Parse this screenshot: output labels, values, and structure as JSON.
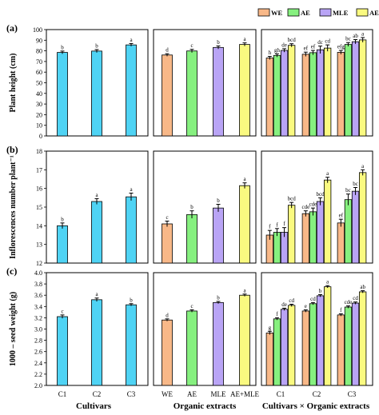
{
  "legend": [
    {
      "label": "WE",
      "color": "#f8b888"
    },
    {
      "label": "AE",
      "color": "#86f07f"
    },
    {
      "label": "MLE",
      "color": "#b9a4f5"
    },
    {
      "label": "AE+MLE",
      "color": "#fafa80"
    }
  ],
  "cultivar_color": "#4fd3f4",
  "group_labels": {
    "cultivars": "Cultivars",
    "extracts": "Organic extracts",
    "interaction": "Cultivars × Organic extracts"
  },
  "chart_data": [
    {
      "type": "bar",
      "row_label": "(a)",
      "ylabel": "Plant height (cm)",
      "ylim": [
        0,
        100
      ],
      "yticks": [
        0,
        10,
        20,
        30,
        40,
        50,
        60,
        70,
        80,
        90,
        100
      ],
      "cultivars": {
        "categories": [
          "C1",
          "C2",
          "C3"
        ],
        "values": [
          78.5,
          79.8,
          85.6
        ],
        "errors": [
          1.3,
          1.4,
          1.3
        ],
        "letters": [
          "b",
          "b",
          "a"
        ]
      },
      "extracts": {
        "categories": [
          "WE",
          "AE",
          "MLE",
          "AE+MLE"
        ],
        "values": [
          76.1,
          79.9,
          83.2,
          86.0
        ],
        "errors": [
          1.2,
          1.5,
          1.4,
          1.5
        ],
        "letters": [
          "d",
          "c",
          "b",
          "a"
        ]
      },
      "interaction": {
        "categories": [
          "C1",
          "C2",
          "C3"
        ],
        "series": [
          {
            "name": "WE",
            "values": [
              73.3,
              76.8,
              78.6
            ],
            "errors": [
              1.5,
              2.0,
              1.8
            ],
            "letters": [
              "h",
              "ef",
              "efg"
            ]
          },
          {
            "name": "AE",
            "values": [
              75.7,
              78.3,
              86.0
            ],
            "errors": [
              1.5,
              2.1,
              1.8
            ],
            "letters": [
              "gh",
              "ef",
              "bc"
            ]
          },
          {
            "name": "MLE",
            "values": [
              80.4,
              81.0,
              88.6
            ],
            "errors": [
              1.6,
              3.5,
              2.0
            ],
            "letters": [
              "de",
              "dc",
              "ab"
            ]
          },
          {
            "name": "AE+MLE",
            "values": [
              85.2,
              82.6,
              90.3
            ],
            "errors": [
              1.5,
              3.0,
              2.2
            ],
            "letters": [
              "bcd",
              "cd",
              "a"
            ]
          }
        ]
      }
    },
    {
      "type": "bar",
      "row_label": "(b)",
      "ylabel": "Inflorescences number plant⁻¹",
      "ylim": [
        12,
        18
      ],
      "yticks": [
        12,
        13,
        14,
        15,
        16,
        17,
        18
      ],
      "cultivars": {
        "categories": [
          "C1",
          "C2",
          "C3"
        ],
        "values": [
          14.0,
          15.3,
          15.55
        ],
        "errors": [
          0.15,
          0.15,
          0.2
        ],
        "letters": [
          "b",
          "a",
          "a"
        ]
      },
      "extracts": {
        "categories": [
          "WE",
          "AE",
          "MLE",
          "AE+MLE"
        ],
        "values": [
          14.1,
          14.6,
          14.95,
          16.15
        ],
        "errors": [
          0.15,
          0.2,
          0.2,
          0.15
        ],
        "letters": [
          "c",
          "b",
          "b",
          "a"
        ]
      },
      "interaction": {
        "categories": [
          "C1",
          "C2",
          "C3"
        ],
        "series": [
          {
            "name": "WE",
            "values": [
              13.5,
              14.65,
              14.15
            ],
            "errors": [
              0.25,
              0.15,
              0.2
            ],
            "letters": [
              "f",
              "cde",
              "ef"
            ]
          },
          {
            "name": "AE",
            "values": [
              13.65,
              14.75,
              15.4
            ],
            "errors": [
              0.2,
              0.2,
              0.3
            ],
            "letters": [
              "f",
              "cde",
              "bc"
            ]
          },
          {
            "name": "MLE",
            "values": [
              13.65,
              15.3,
              15.85
            ],
            "errors": [
              0.25,
              0.2,
              0.2
            ],
            "letters": [
              "f",
              "bcd",
              "bc"
            ]
          },
          {
            "name": "AE+MLE",
            "values": [
              15.1,
              16.45,
              16.85
            ],
            "errors": [
              0.15,
              0.15,
              0.15
            ],
            "letters": [
              "bcd",
              "a",
              "a"
            ]
          }
        ]
      }
    },
    {
      "type": "bar",
      "row_label": "(c)",
      "ylabel": "1000 – seed weight (g)",
      "ylim": [
        2.0,
        4.0
      ],
      "yticks": [
        2.0,
        2.2,
        2.4,
        2.6,
        2.8,
        3.0,
        3.2,
        3.4,
        3.6,
        3.8,
        4.0
      ],
      "ytick_labels": [
        "2.0",
        "2.2",
        "2.4",
        "2.6",
        "2.8",
        "3.0",
        "3.2",
        "3.4",
        "3.6",
        "3.8",
        "4.0"
      ],
      "cultivars": {
        "categories": [
          "C1",
          "C2",
          "C3"
        ],
        "values": [
          3.22,
          3.52,
          3.43
        ],
        "errors": [
          0.03,
          0.03,
          0.02
        ],
        "letters": [
          "c",
          "a",
          "b"
        ]
      },
      "extracts": {
        "categories": [
          "WE",
          "AE",
          "MLE",
          "AE+MLE"
        ],
        "values": [
          3.16,
          3.32,
          3.47,
          3.6
        ],
        "errors": [
          0.02,
          0.02,
          0.02,
          0.02
        ],
        "letters": [
          "d",
          "c",
          "b",
          "a"
        ]
      },
      "interaction": {
        "categories": [
          "C1",
          "C2",
          "C3"
        ],
        "series": [
          {
            "name": "WE",
            "values": [
              2.93,
              3.32,
              3.25
            ],
            "errors": [
              0.03,
              0.02,
              0.02
            ],
            "letters": [
              "g",
              "e",
              "f"
            ]
          },
          {
            "name": "AE",
            "values": [
              3.18,
              3.45,
              3.39
            ],
            "errors": [
              0.02,
              0.02,
              0.02
            ],
            "letters": [
              "f",
              "cd",
              "cde"
            ]
          },
          {
            "name": "MLE",
            "values": [
              3.35,
              3.59,
              3.46
            ],
            "errors": [
              0.02,
              0.02,
              0.02
            ],
            "letters": [
              "de",
              "b",
              "cd"
            ]
          },
          {
            "name": "AE+MLE",
            "values": [
              3.42,
              3.75,
              3.66
            ],
            "errors": [
              0.02,
              0.02,
              0.02
            ],
            "letters": [
              "cd",
              "a",
              "ab"
            ]
          }
        ]
      }
    }
  ]
}
